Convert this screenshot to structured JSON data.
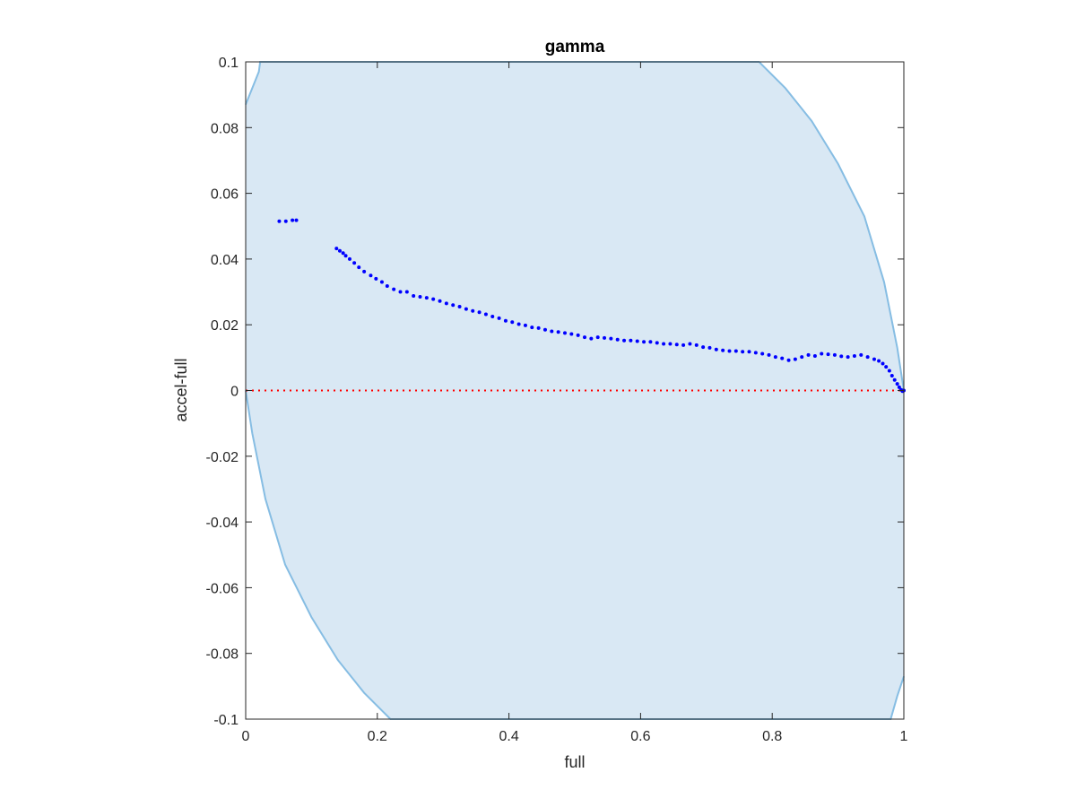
{
  "chart_data": {
    "type": "scatter",
    "title": "gamma",
    "xlabel": "full",
    "ylabel": "accel-full",
    "xlim": [
      0,
      1
    ],
    "ylim": [
      -0.1,
      0.1
    ],
    "xticks": [
      0,
      0.2,
      0.4,
      0.6,
      0.8,
      1
    ],
    "xtick_labels": [
      "0",
      "0.2",
      "0.4",
      "0.6",
      "0.8",
      "1"
    ],
    "yticks": [
      -0.1,
      -0.08,
      -0.06,
      -0.04,
      -0.02,
      0,
      0.02,
      0.04,
      0.06,
      0.08,
      0.1
    ],
    "ytick_labels": [
      "-0.1",
      "-0.08",
      "-0.06",
      "-0.04",
      "-0.02",
      "0",
      "0.02",
      "0.04",
      "0.06",
      "0.08",
      "0.1"
    ],
    "grid": false,
    "reference_line": {
      "y": 0,
      "style": "dotted",
      "color": "#ff0000"
    },
    "band": {
      "fill": "#d9e8f4",
      "stroke": "#86bde3",
      "upper": [
        [
          0,
          0.087
        ],
        [
          0.02,
          0.097
        ],
        [
          0.022,
          0.1
        ],
        [
          0.78,
          0.1
        ],
        [
          0.82,
          0.092
        ],
        [
          0.86,
          0.082
        ],
        [
          0.9,
          0.069
        ],
        [
          0.94,
          0.053
        ],
        [
          0.97,
          0.033
        ],
        [
          0.99,
          0.013
        ],
        [
          1,
          0
        ]
      ],
      "lower": [
        [
          0,
          0
        ],
        [
          0.01,
          -0.013
        ],
        [
          0.03,
          -0.033
        ],
        [
          0.06,
          -0.053
        ],
        [
          0.1,
          -0.069
        ],
        [
          0.14,
          -0.082
        ],
        [
          0.18,
          -0.092
        ],
        [
          0.22,
          -0.1
        ],
        [
          0.98,
          -0.1
        ],
        [
          0.99,
          -0.093
        ],
        [
          1,
          -0.087
        ]
      ]
    },
    "series": [
      {
        "color": "#0000ff",
        "x": [
          0.051,
          0.061,
          0.071,
          0.077,
          0.138,
          0.143,
          0.148,
          0.152,
          0.158,
          0.165,
          0.172,
          0.18,
          0.19,
          0.198,
          0.207,
          0.215,
          0.225,
          0.235,
          0.245,
          0.255,
          0.265,
          0.275,
          0.285,
          0.295,
          0.305,
          0.315,
          0.325,
          0.335,
          0.345,
          0.355,
          0.365,
          0.375,
          0.385,
          0.395,
          0.405,
          0.415,
          0.425,
          0.435,
          0.445,
          0.455,
          0.465,
          0.475,
          0.485,
          0.495,
          0.505,
          0.515,
          0.525,
          0.535,
          0.545,
          0.555,
          0.565,
          0.575,
          0.585,
          0.595,
          0.605,
          0.615,
          0.625,
          0.635,
          0.645,
          0.655,
          0.665,
          0.675,
          0.685,
          0.695,
          0.705,
          0.715,
          0.725,
          0.735,
          0.745,
          0.755,
          0.765,
          0.775,
          0.785,
          0.795,
          0.805,
          0.815,
          0.825,
          0.835,
          0.845,
          0.855,
          0.865,
          0.875,
          0.885,
          0.895,
          0.905,
          0.915,
          0.925,
          0.935,
          0.945,
          0.955,
          0.962,
          0.968,
          0.973,
          0.978,
          0.982,
          0.986,
          0.99,
          0.993,
          0.996,
          0.998,
          1.0
        ],
        "y": [
          0.0515,
          0.0515,
          0.0518,
          0.0518,
          0.0432,
          0.0425,
          0.0418,
          0.041,
          0.04,
          0.0388,
          0.0375,
          0.0362,
          0.035,
          0.034,
          0.033,
          0.0318,
          0.0308,
          0.03,
          0.03,
          0.0288,
          0.0285,
          0.0282,
          0.0278,
          0.0272,
          0.0265,
          0.026,
          0.0255,
          0.0248,
          0.0242,
          0.0238,
          0.0232,
          0.0225,
          0.022,
          0.0212,
          0.0208,
          0.0202,
          0.0198,
          0.0192,
          0.019,
          0.0185,
          0.018,
          0.0178,
          0.0175,
          0.0172,
          0.0168,
          0.0162,
          0.0158,
          0.0162,
          0.016,
          0.0158,
          0.0155,
          0.0152,
          0.0152,
          0.015,
          0.0148,
          0.0148,
          0.0145,
          0.0142,
          0.0142,
          0.014,
          0.0138,
          0.0142,
          0.0138,
          0.0132,
          0.013,
          0.0125,
          0.0122,
          0.012,
          0.012,
          0.0118,
          0.0118,
          0.0115,
          0.0112,
          0.0108,
          0.0102,
          0.0098,
          0.0092,
          0.0095,
          0.0102,
          0.0108,
          0.0105,
          0.0112,
          0.011,
          0.0108,
          0.0104,
          0.0102,
          0.0105,
          0.0108,
          0.0102,
          0.0095,
          0.009,
          0.0082,
          0.0072,
          0.006,
          0.0045,
          0.0032,
          0.002,
          0.001,
          0.0002,
          -0.0002,
          0.0
        ]
      }
    ]
  }
}
